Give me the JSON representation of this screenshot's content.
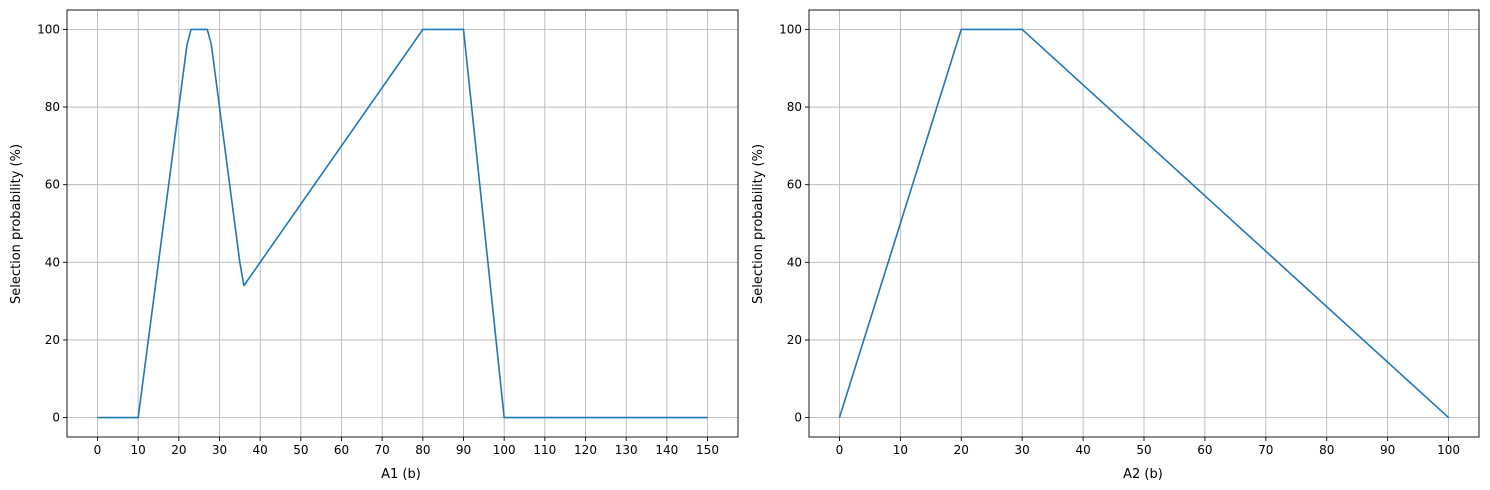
{
  "chart_data": [
    {
      "type": "line",
      "title": "",
      "xlabel": "A1 (b)",
      "ylabel": "Selection probability (%)",
      "xlim": [
        -7.5,
        157.5
      ],
      "ylim": [
        -5,
        105
      ],
      "xticks": [
        0,
        10,
        20,
        30,
        40,
        50,
        60,
        70,
        80,
        90,
        100,
        110,
        120,
        130,
        140,
        150
      ],
      "yticks": [
        0,
        20,
        40,
        60,
        80,
        100
      ],
      "grid": true,
      "series": [
        {
          "color": "#1f77b4",
          "x": [
            0,
            10,
            22,
            23,
            27,
            28,
            35,
            36,
            80,
            90,
            100,
            150
          ],
          "y": [
            0,
            0,
            96,
            100,
            100,
            96,
            40,
            34,
            100,
            100,
            0,
            0
          ]
        }
      ]
    },
    {
      "type": "line",
      "title": "",
      "xlabel": "A2 (b)",
      "ylabel": "Selection probability (%)",
      "xlim": [
        -5,
        105
      ],
      "ylim": [
        -5,
        105
      ],
      "xticks": [
        0,
        10,
        20,
        30,
        40,
        50,
        60,
        70,
        80,
        90,
        100
      ],
      "yticks": [
        0,
        20,
        40,
        60,
        80,
        100
      ],
      "grid": true,
      "series": [
        {
          "color": "#1f77b4",
          "x": [
            0,
            20,
            30,
            100
          ],
          "y": [
            0,
            100,
            100,
            0
          ]
        }
      ]
    }
  ]
}
